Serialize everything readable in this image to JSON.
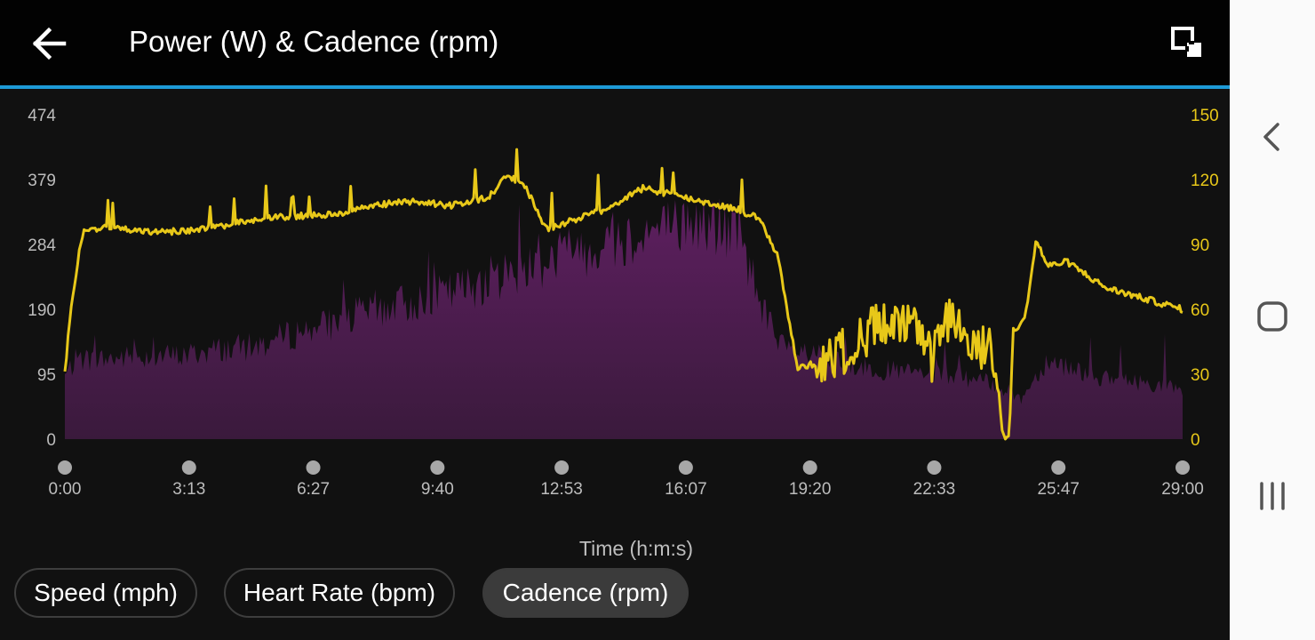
{
  "header": {
    "title": "Power (W) & Cadence (rpm)",
    "accent_color": "#1e9bd7",
    "back_icon": "arrow-left-icon",
    "expand_icon": "expand-icon"
  },
  "chart_data": {
    "type": "area",
    "xlabel": "Time (h:m:s)",
    "x_ticks": [
      "0:00",
      "3:13",
      "6:27",
      "9:40",
      "12:53",
      "16:07",
      "19:20",
      "22:33",
      "25:47",
      "29:00"
    ],
    "x_range_minutes": [
      0,
      29
    ],
    "y_left": {
      "ticks": [
        "0",
        "95",
        "190",
        "284",
        "379",
        "474"
      ],
      "range": [
        0,
        474
      ]
    },
    "y_right": {
      "ticks": [
        "0",
        "30",
        "60",
        "90",
        "120",
        "150"
      ],
      "range": [
        0,
        150
      ],
      "color": "#e8c819"
    },
    "grid": false,
    "series": [
      {
        "axis": "left",
        "color": "#5a1f5c",
        "t": [
          0,
          0.3,
          1,
          2,
          3,
          4,
          5,
          6,
          7,
          8,
          9,
          10,
          11,
          11.5,
          12,
          12.5,
          13,
          14,
          15,
          16,
          16.5,
          17,
          17.5,
          18,
          18.5,
          19,
          19.5,
          20,
          21,
          22,
          23,
          24,
          24.4,
          24.8,
          25.5,
          26,
          27,
          28,
          29
        ],
        "values": [
          95,
          120,
          120,
          125,
          125,
          135,
          140,
          160,
          175,
          195,
          205,
          220,
          240,
          250,
          260,
          270,
          280,
          295,
          310,
          320,
          325,
          320,
          300,
          220,
          140,
          130,
          125,
          115,
          105,
          100,
          95,
          85,
          75,
          60,
          120,
          110,
          90,
          85,
          75
        ]
      },
      {
        "axis": "right",
        "color": "#e8c819",
        "t": [
          0,
          0.15,
          0.4,
          0.5,
          1,
          2,
          3,
          4,
          5,
          6,
          7,
          8,
          9,
          10,
          11,
          11.5,
          12,
          12.5,
          13,
          14,
          15,
          16,
          17,
          17.5,
          18,
          18.5,
          19,
          19.5,
          20,
          21,
          22,
          22.5,
          23,
          23.5,
          24,
          24.2,
          24.3,
          24.4,
          24.5,
          24.6,
          24.9,
          25.2,
          25.5,
          26,
          27,
          28,
          29
        ],
        "values": [
          30,
          60,
          90,
          96,
          98,
          96,
          96,
          98,
          102,
          103,
          104,
          108,
          110,
          108,
          112,
          122,
          115,
          97,
          100,
          106,
          116,
          112,
          108,
          106,
          102,
          85,
          33,
          35,
          38,
          52,
          52,
          36,
          60,
          40,
          42,
          32,
          5,
          0,
          0,
          50,
          55,
          92,
          80,
          82,
          70,
          65,
          60
        ]
      }
    ]
  },
  "tabs": [
    {
      "label": "Speed (mph)"
    },
    {
      "label": "Heart Rate (bpm)"
    },
    {
      "label": "Cadence (rpm)"
    }
  ],
  "system_nav": {
    "back_icon": "chevron-left-icon",
    "home_icon": "home-icon",
    "recents_icon": "recents-icon"
  }
}
